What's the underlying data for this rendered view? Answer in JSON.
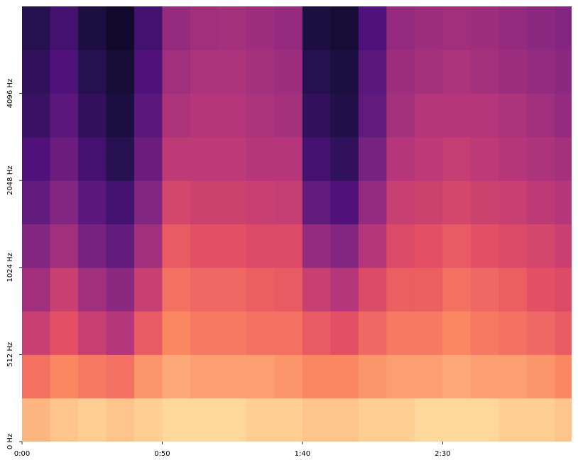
{
  "chart_data": {
    "type": "spectrogram",
    "colormap": "magma",
    "yscale": "symlog",
    "linthresh": 512,
    "xlim": [
      0,
      196
    ],
    "ylim": [
      0,
      8192
    ],
    "xticks": [
      {
        "value": 0,
        "label": "0:00"
      },
      {
        "value": 50,
        "label": "0:50"
      },
      {
        "value": 100,
        "label": "1:40"
      },
      {
        "value": 150,
        "label": "2:30"
      }
    ],
    "yticks": [
      {
        "value": 0,
        "label": "0 Hz"
      },
      {
        "value": 512,
        "label": "512 Hz"
      },
      {
        "value": 1024,
        "label": "1024 Hz"
      },
      {
        "value": 2048,
        "label": "2048 Hz"
      },
      {
        "value": 4096,
        "label": "4096 Hz"
      }
    ],
    "time_bins": [
      0,
      10,
      20,
      30,
      40,
      50,
      60,
      70,
      80,
      90,
      100,
      110,
      120,
      130,
      140,
      150,
      160,
      170,
      180,
      190,
      200
    ],
    "freq_bins": [
      0,
      256,
      512,
      724,
      1024,
      1448,
      2048,
      2896,
      4096,
      5793,
      8192
    ],
    "values": [
      [
        0.85,
        0.88,
        0.9,
        0.88,
        0.9,
        0.92,
        0.92,
        0.92,
        0.9,
        0.9,
        0.88,
        0.88,
        0.9,
        0.9,
        0.92,
        0.92,
        0.92,
        0.9,
        0.9,
        0.88
      ],
      [
        0.7,
        0.75,
        0.72,
        0.7,
        0.78,
        0.82,
        0.8,
        0.8,
        0.8,
        0.78,
        0.75,
        0.75,
        0.78,
        0.8,
        0.8,
        0.82,
        0.8,
        0.8,
        0.78,
        0.75
      ],
      [
        0.55,
        0.62,
        0.55,
        0.5,
        0.65,
        0.75,
        0.72,
        0.72,
        0.7,
        0.7,
        0.65,
        0.62,
        0.68,
        0.72,
        0.72,
        0.75,
        0.72,
        0.7,
        0.68,
        0.65
      ],
      [
        0.45,
        0.55,
        0.45,
        0.4,
        0.55,
        0.7,
        0.68,
        0.68,
        0.66,
        0.65,
        0.55,
        0.5,
        0.6,
        0.66,
        0.66,
        0.7,
        0.68,
        0.66,
        0.62,
        0.6
      ],
      [
        0.38,
        0.45,
        0.35,
        0.3,
        0.45,
        0.65,
        0.62,
        0.62,
        0.6,
        0.6,
        0.42,
        0.38,
        0.5,
        0.6,
        0.62,
        0.65,
        0.62,
        0.6,
        0.58,
        0.55
      ],
      [
        0.3,
        0.38,
        0.28,
        0.22,
        0.38,
        0.58,
        0.56,
        0.56,
        0.55,
        0.54,
        0.3,
        0.25,
        0.42,
        0.55,
        0.56,
        0.58,
        0.56,
        0.55,
        0.52,
        0.5
      ],
      [
        0.25,
        0.32,
        0.22,
        0.15,
        0.32,
        0.52,
        0.52,
        0.52,
        0.5,
        0.5,
        0.22,
        0.18,
        0.35,
        0.5,
        0.52,
        0.54,
        0.52,
        0.5,
        0.48,
        0.46
      ],
      [
        0.2,
        0.28,
        0.18,
        0.12,
        0.28,
        0.48,
        0.5,
        0.5,
        0.48,
        0.46,
        0.18,
        0.14,
        0.3,
        0.46,
        0.5,
        0.5,
        0.5,
        0.48,
        0.45,
        0.42
      ],
      [
        0.18,
        0.25,
        0.15,
        0.1,
        0.25,
        0.45,
        0.48,
        0.48,
        0.46,
        0.44,
        0.15,
        0.12,
        0.28,
        0.44,
        0.46,
        0.48,
        0.46,
        0.44,
        0.42,
        0.4
      ],
      [
        0.15,
        0.22,
        0.12,
        0.08,
        0.22,
        0.42,
        0.45,
        0.46,
        0.44,
        0.42,
        0.12,
        0.1,
        0.25,
        0.42,
        0.44,
        0.45,
        0.44,
        0.42,
        0.4,
        0.38
      ]
    ]
  }
}
